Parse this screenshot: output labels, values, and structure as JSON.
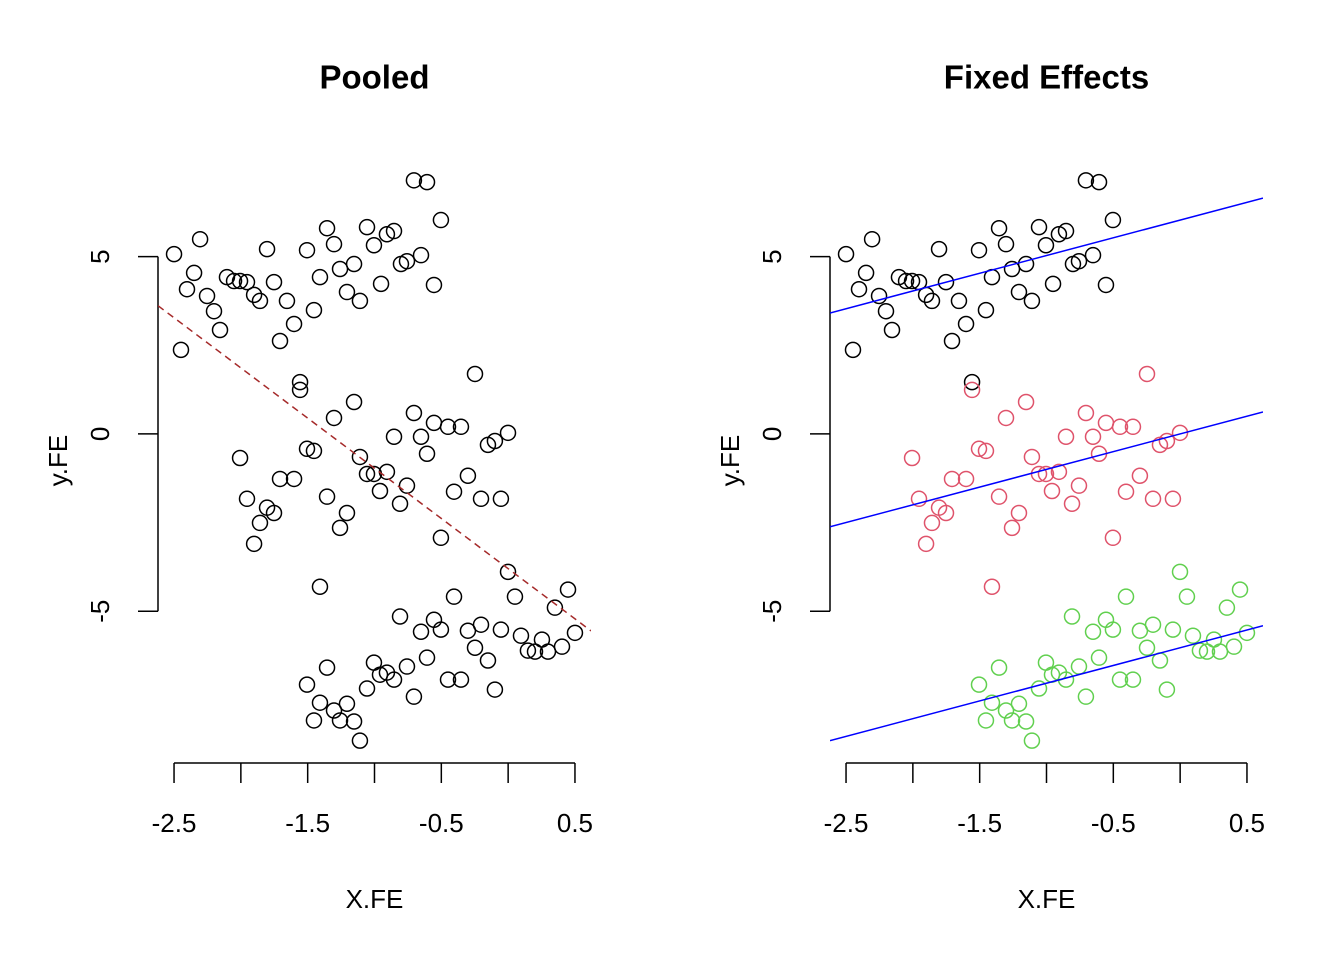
{
  "chart_data": [
    {
      "type": "scatter",
      "title": "Pooled",
      "xlabel": "X.FE",
      "ylabel": "y.FE",
      "xlim": [
        -2.62,
        0.62
      ],
      "ylim": [
        -9.28,
        7.78
      ],
      "xticks": [
        -2.5,
        {
          "value": -2,
          "label": null
        },
        -1.5,
        {
          "value": -1,
          "label": null
        },
        -0.5,
        {
          "value": 0,
          "label": null
        },
        0.5
      ],
      "yticks": [
        -5,
        0,
        5
      ],
      "series": [
        {
          "color": "#000000",
          "x": [
            -2.5,
            -2.448,
            -2.403,
            -2.35,
            -2.305,
            -2.253,
            -2.201,
            -2.156,
            -2.104,
            -2.051,
            -2.006,
            -1.954,
            -1.901,
            -1.857,
            -1.804,
            -1.752,
            -1.707,
            -1.655,
            -1.602,
            -1.557,
            -1.505,
            -1.453,
            -1.408,
            -1.355,
            -1.303,
            -1.258,
            -1.206,
            -1.153,
            -1.109,
            -1.056,
            -1.004,
            -0.951,
            -0.907,
            -0.854,
            -0.802,
            -0.757,
            -0.705,
            -0.652,
            -0.607,
            -0.555,
            -0.503
          ],
          "values": [
            5.07,
            2.37,
            4.08,
            4.54,
            5.49,
            3.89,
            3.46,
            2.93,
            4.42,
            4.31,
            4.31,
            4.28,
            3.92,
            3.75,
            5.21,
            4.28,
            2.62,
            3.75,
            3.1,
            1.46,
            5.18,
            3.49,
            4.42,
            5.8,
            5.35,
            4.65,
            4.0,
            4.79,
            3.75,
            5.83,
            5.32,
            4.23,
            5.63,
            5.72,
            4.79,
            4.87,
            7.15,
            5.04,
            7.1,
            4.2,
            6.03
          ]
        },
        {
          "color": "#000000",
          "x": [
            -2.006,
            -1.954,
            -1.901,
            -1.857,
            -1.804,
            -1.752,
            -1.707,
            -1.602,
            -1.557,
            -1.505,
            -1.453,
            -1.408,
            -1.355,
            -1.303,
            -1.258,
            -1.206,
            -1.153,
            -1.109,
            -1.056,
            -1.004,
            -0.959,
            -0.907,
            -0.854,
            -0.809,
            -0.757,
            -0.705,
            -0.652,
            -0.607,
            -0.555,
            -0.503,
            -0.45,
            -0.405,
            -0.353,
            -0.301,
            -0.248,
            -0.203,
            -0.151,
            -0.099,
            -0.054,
            -0.001
          ],
          "values": [
            -0.68,
            -1.83,
            -3.1,
            -2.51,
            -2.08,
            -2.23,
            -1.27,
            -1.27,
            1.24,
            -0.42,
            -0.48,
            -4.31,
            -1.77,
            0.45,
            -2.65,
            -2.23,
            0.9,
            -0.65,
            -1.13,
            -1.13,
            -1.61,
            -1.07,
            -0.08,
            -1.97,
            -1.46,
            0.59,
            -0.08,
            -0.56,
            0.31,
            -2.93,
            0.2,
            -1.63,
            0.2,
            -1.18,
            1.69,
            -1.83,
            -0.31,
            -0.2,
            -1.83,
            0.03
          ]
        },
        {
          "color": "#000000",
          "x": [
            -1.505,
            -1.453,
            -1.408,
            -1.355,
            -1.303,
            -1.258,
            -1.206,
            -1.153,
            -1.109,
            -1.056,
            -1.004,
            -0.959,
            -0.907,
            -0.854,
            -0.809,
            -0.757,
            -0.705,
            -0.652,
            -0.607,
            -0.555,
            -0.503,
            -0.45,
            -0.405,
            -0.353,
            -0.301,
            -0.248,
            -0.203,
            -0.151,
            -0.099,
            -0.054,
            -0.001,
            0.051,
            0.096,
            0.148,
            0.201,
            0.253,
            0.298,
            0.35,
            0.403,
            0.448,
            0.5
          ],
          "values": [
            -7.07,
            -8.08,
            -7.58,
            -6.59,
            -7.8,
            -8.08,
            -7.61,
            -8.11,
            -8.65,
            -7.18,
            -6.45,
            -6.79,
            -6.73,
            -6.93,
            -5.15,
            -6.56,
            -7.41,
            -5.58,
            -6.31,
            -5.24,
            -5.52,
            -6.93,
            -4.59,
            -6.93,
            -5.55,
            -6.03,
            -5.38,
            -6.39,
            -7.21,
            -5.52,
            -3.89,
            -4.59,
            -5.69,
            -6.11,
            -6.14,
            -5.8,
            -6.14,
            -4.9,
            -6.0,
            -4.39,
            -5.61
          ]
        }
      ],
      "lines": [
        {
          "intercept": -3.8,
          "slope": -2.83,
          "color": "#A52A2A",
          "dashed": true
        }
      ]
    },
    {
      "type": "scatter",
      "title": "Fixed Effects",
      "xlabel": "X.FE",
      "ylabel": "y.FE",
      "xlim": [
        -2.62,
        0.62
      ],
      "ylim": [
        -9.28,
        7.78
      ],
      "xticks": [
        -2.5,
        {
          "value": -2,
          "label": null
        },
        -1.5,
        {
          "value": -1,
          "label": null
        },
        -0.5,
        {
          "value": 0,
          "label": null
        },
        0.5
      ],
      "yticks": [
        -5,
        0,
        5
      ],
      "series": [
        {
          "color": "#000000",
          "x": [
            -2.5,
            -2.448,
            -2.403,
            -2.35,
            -2.305,
            -2.253,
            -2.201,
            -2.156,
            -2.104,
            -2.051,
            -2.006,
            -1.954,
            -1.901,
            -1.857,
            -1.804,
            -1.752,
            -1.707,
            -1.655,
            -1.602,
            -1.557,
            -1.505,
            -1.453,
            -1.408,
            -1.355,
            -1.303,
            -1.258,
            -1.206,
            -1.153,
            -1.109,
            -1.056,
            -1.004,
            -0.951,
            -0.907,
            -0.854,
            -0.802,
            -0.757,
            -0.705,
            -0.652,
            -0.607,
            -0.555,
            -0.503
          ],
          "values": [
            5.07,
            2.37,
            4.08,
            4.54,
            5.49,
            3.89,
            3.46,
            2.93,
            4.42,
            4.31,
            4.31,
            4.28,
            3.92,
            3.75,
            5.21,
            4.28,
            2.62,
            3.75,
            3.1,
            1.46,
            5.18,
            3.49,
            4.42,
            5.8,
            5.35,
            4.65,
            4.0,
            4.79,
            3.75,
            5.83,
            5.32,
            4.23,
            5.63,
            5.72,
            4.79,
            4.87,
            7.15,
            5.04,
            7.1,
            4.2,
            6.03
          ]
        },
        {
          "color": "#DF536B",
          "x": [
            -2.006,
            -1.954,
            -1.901,
            -1.857,
            -1.804,
            -1.752,
            -1.707,
            -1.602,
            -1.557,
            -1.505,
            -1.453,
            -1.408,
            -1.355,
            -1.303,
            -1.258,
            -1.206,
            -1.153,
            -1.109,
            -1.056,
            -1.004,
            -0.959,
            -0.907,
            -0.854,
            -0.809,
            -0.757,
            -0.705,
            -0.652,
            -0.607,
            -0.555,
            -0.503,
            -0.45,
            -0.405,
            -0.353,
            -0.301,
            -0.248,
            -0.203,
            -0.151,
            -0.099,
            -0.054,
            -0.001
          ],
          "values": [
            -0.68,
            -1.83,
            -3.1,
            -2.51,
            -2.08,
            -2.23,
            -1.27,
            -1.27,
            1.24,
            -0.42,
            -0.48,
            -4.31,
            -1.77,
            0.45,
            -2.65,
            -2.23,
            0.9,
            -0.65,
            -1.13,
            -1.13,
            -1.61,
            -1.07,
            -0.08,
            -1.97,
            -1.46,
            0.59,
            -0.08,
            -0.56,
            0.31,
            -2.93,
            0.2,
            -1.63,
            0.2,
            -1.18,
            1.69,
            -1.83,
            -0.31,
            -0.2,
            -1.83,
            0.03
          ]
        },
        {
          "color": "#61D04F",
          "x": [
            -1.505,
            -1.453,
            -1.408,
            -1.355,
            -1.303,
            -1.258,
            -1.206,
            -1.153,
            -1.109,
            -1.056,
            -1.004,
            -0.959,
            -0.907,
            -0.854,
            -0.809,
            -0.757,
            -0.705,
            -0.652,
            -0.607,
            -0.555,
            -0.503,
            -0.45,
            -0.405,
            -0.353,
            -0.301,
            -0.248,
            -0.203,
            -0.151,
            -0.099,
            -0.054,
            -0.001,
            0.051,
            0.096,
            0.148,
            0.201,
            0.253,
            0.298,
            0.35,
            0.403,
            0.448,
            0.5
          ],
          "values": [
            -7.07,
            -8.08,
            -7.58,
            -6.59,
            -7.8,
            -8.08,
            -7.61,
            -8.11,
            -8.65,
            -7.18,
            -6.45,
            -6.79,
            -6.73,
            -6.93,
            -5.15,
            -6.56,
            -7.41,
            -5.58,
            -6.31,
            -5.24,
            -5.52,
            -6.93,
            -4.59,
            -6.93,
            -5.55,
            -6.03,
            -5.38,
            -6.39,
            -7.21,
            -5.52,
            -3.89,
            -4.59,
            -5.69,
            -6.11,
            -6.14,
            -5.8,
            -6.14,
            -4.9,
            -6.0,
            -4.39,
            -5.61
          ]
        }
      ],
      "lines": [
        {
          "intercept": 6.03,
          "slope": 1.0,
          "color": "#0000FF",
          "dashed": false
        },
        {
          "intercept": 0.0,
          "slope": 1.0,
          "color": "#0000FF",
          "dashed": false
        },
        {
          "intercept": -6.03,
          "slope": 1.0,
          "color": "#0000FF",
          "dashed": false
        }
      ]
    }
  ]
}
